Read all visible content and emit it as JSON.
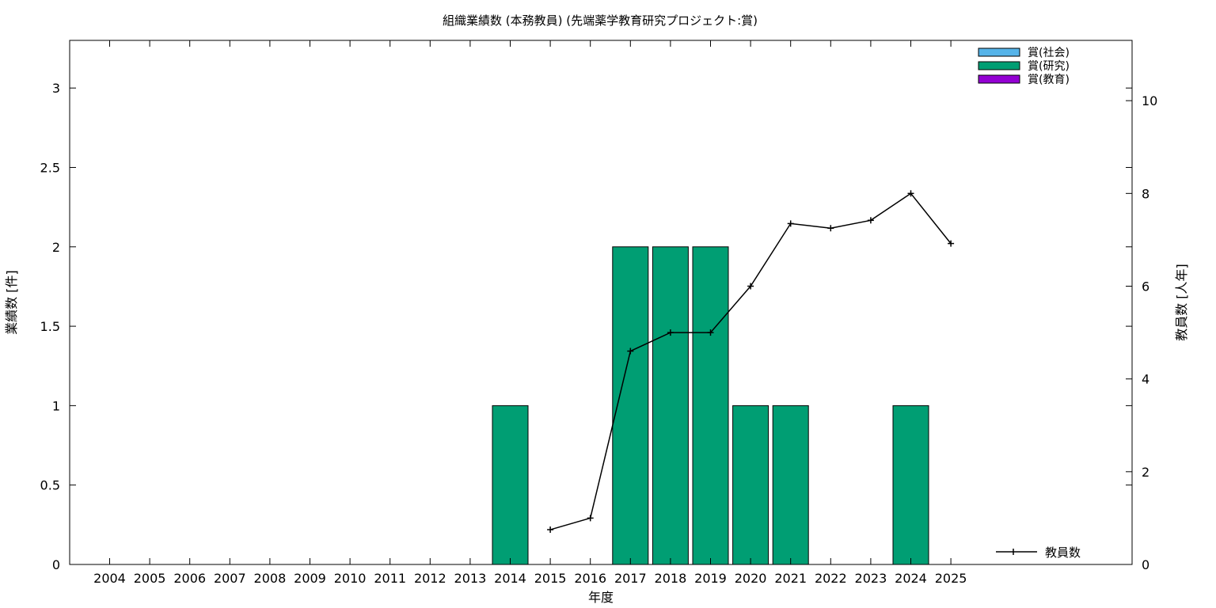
{
  "chart_data": {
    "type": "bar",
    "title": "組織業績数 (本務教員) (先端薬学教育研究プロジェクト:賞)",
    "xlabel": "年度",
    "ylabel_left": "業績数 [件]",
    "ylabel_right": "教員数 [人年]",
    "categories": [
      "2004",
      "2005",
      "2006",
      "2007",
      "2008",
      "2009",
      "2010",
      "2011",
      "2012",
      "2013",
      "2014",
      "2015",
      "2016",
      "2017",
      "2018",
      "2019",
      "2020",
      "2021",
      "2022",
      "2023",
      "2024",
      "2025"
    ],
    "ylim_left": [
      0,
      3.3
    ],
    "yticks_left": [
      0,
      0.5,
      1,
      1.5,
      2,
      2.5,
      3
    ],
    "yticks_left_labels": [
      "0",
      "0.5",
      "1",
      "1.5",
      "2",
      "2.5",
      "3"
    ],
    "ylim_right": [
      0,
      11.3
    ],
    "yticks_right": [
      0,
      2,
      4,
      6,
      8,
      10
    ],
    "yticks_right_labels": [
      "0",
      "2",
      "4",
      "6",
      "8",
      "10"
    ],
    "grid": false,
    "legend_position": "top-right",
    "series": [
      {
        "name": "賞(社会)",
        "type": "bar",
        "color": "#56b4e9",
        "values": [
          0,
          0,
          0,
          0,
          0,
          0,
          0,
          0,
          0,
          0,
          0,
          0,
          0,
          0,
          0,
          0,
          0,
          0,
          0,
          0,
          0,
          0
        ]
      },
      {
        "name": "賞(研究)",
        "type": "bar",
        "color": "#009e73",
        "values": [
          0,
          0,
          0,
          0,
          0,
          0,
          0,
          0,
          0,
          0,
          1,
          0,
          0,
          2,
          2,
          2,
          1,
          1,
          0,
          0,
          1,
          0
        ]
      },
      {
        "name": "賞(教育)",
        "type": "bar",
        "color": "#9400d3",
        "values": [
          0,
          0,
          0,
          0,
          0,
          0,
          0,
          0,
          0,
          0,
          0,
          0,
          0,
          0,
          0,
          0,
          0,
          0,
          0,
          0,
          0,
          0
        ]
      },
      {
        "name": "教員数",
        "type": "line",
        "axis": "right",
        "color": "#000000",
        "values": [
          null,
          null,
          null,
          null,
          null,
          null,
          null,
          null,
          null,
          null,
          null,
          0.75,
          1.0,
          4.6,
          5.0,
          5.0,
          6.0,
          7.35,
          7.25,
          7.42,
          8.0,
          6.92
        ]
      }
    ]
  }
}
